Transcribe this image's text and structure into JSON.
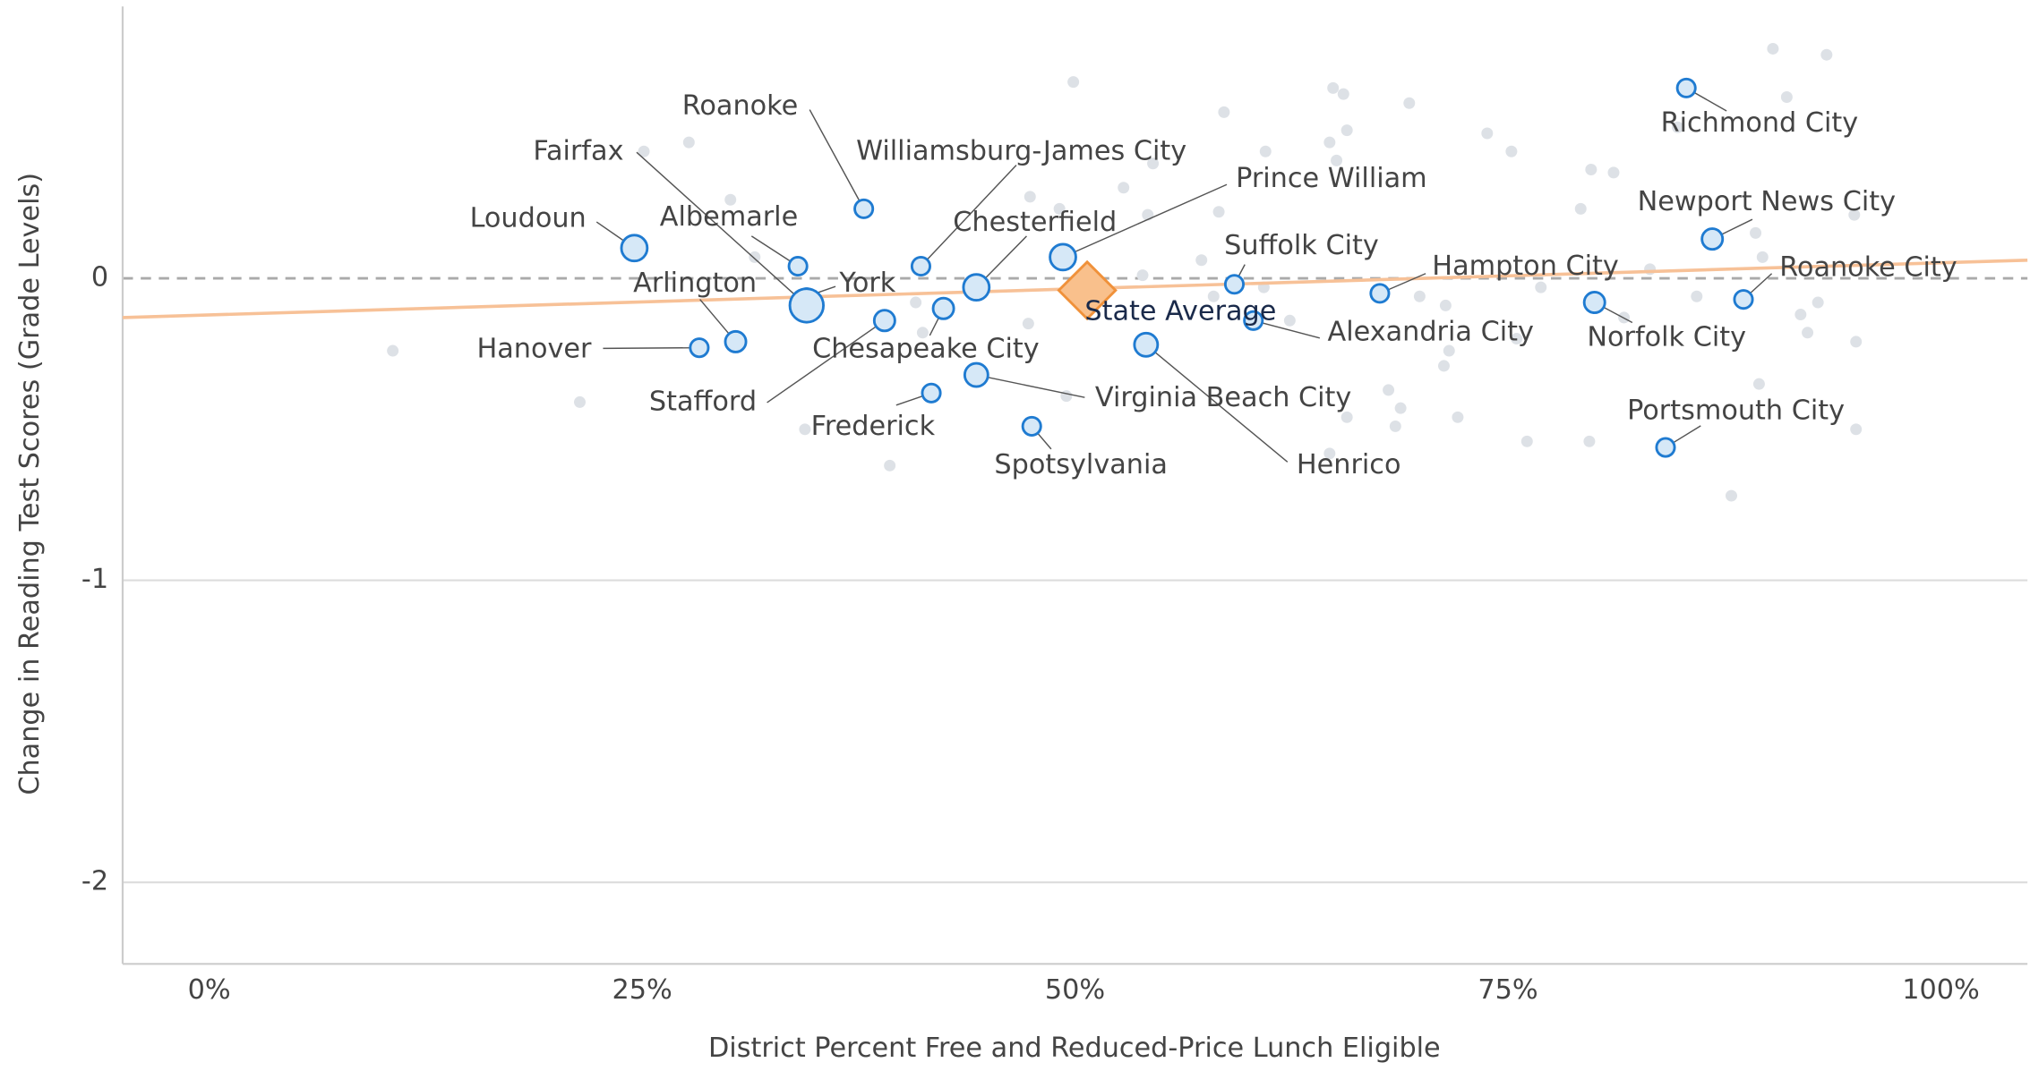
{
  "chart_data": {
    "type": "scatter",
    "xlabel": "District Percent Free and Reduced-Price Lunch Eligible",
    "ylabel": "Change in Reading Test Scores (Grade Levels)",
    "xlim": [
      -5,
      105
    ],
    "ylim": [
      -2.27,
      0.9
    ],
    "xticks": [
      {
        "value": 0,
        "label": "0%"
      },
      {
        "value": 25,
        "label": "25%"
      },
      {
        "value": 50,
        "label": "50%"
      },
      {
        "value": 75,
        "label": "75%"
      },
      {
        "value": 100,
        "label": "100%"
      }
    ],
    "yticks": [
      0,
      -1,
      -2
    ],
    "grid": true,
    "reference_y": 0,
    "background": {
      "color": "#dde1e6",
      "x": [
        10.6,
        21.4,
        25.1,
        27.7,
        30.1,
        31.5,
        34.4,
        39.3,
        40.8,
        41.2,
        47.4,
        47.3,
        49.1,
        49.5,
        49.9,
        52.8,
        53.9,
        54.5,
        54.2,
        58.6,
        58.3,
        57.3,
        58.0,
        61.0,
        60.9,
        62.4,
        64.9,
        65.5,
        64.7,
        65.7,
        65.1,
        69.3,
        69.9,
        71.4,
        71.3,
        71.6,
        68.1,
        68.8,
        68.5,
        65.7,
        64.7,
        72.1,
        73.8,
        75.2,
        75.5,
        76.1,
        76.9,
        79.2,
        79.8,
        81.1,
        81.7,
        83.2,
        85.9,
        79.7,
        87.9,
        89.5,
        90.3,
        91.1,
        89.3,
        89.7,
        91.9,
        92.3,
        92.9,
        93.4,
        95.1,
        95.1,
        95.0,
        84.8
      ],
      "y": [
        -0.24,
        -0.41,
        0.42,
        0.45,
        0.26,
        0.07,
        -0.5,
        -0.62,
        -0.08,
        -0.18,
        0.27,
        -0.15,
        0.23,
        -0.39,
        0.65,
        0.3,
        0.01,
        0.38,
        0.21,
        0.55,
        0.22,
        0.06,
        -0.06,
        0.42,
        -0.03,
        -0.14,
        0.63,
        0.61,
        0.45,
        0.49,
        0.39,
        0.58,
        -0.06,
        -0.09,
        -0.29,
        -0.24,
        -0.37,
        -0.43,
        -0.49,
        -0.46,
        -0.58,
        -0.46,
        0.48,
        0.42,
        -0.2,
        -0.54,
        -0.03,
        0.23,
        0.36,
        0.35,
        -0.13,
        0.03,
        -0.06,
        -0.54,
        -0.72,
        -0.35,
        0.76,
        0.6,
        0.15,
        0.07,
        -0.12,
        -0.18,
        -0.08,
        0.74,
        -0.21,
        -0.5,
        0.21,
        0.5
      ]
    },
    "districts": {
      "color": "#1f7bd1",
      "fill": "#d6e8f7",
      "labels": [
        "Loudoun",
        "Arlington",
        "Hanover",
        "Albemarle",
        "York",
        "Fairfax",
        "Roanoke",
        "Williamsburg-James City",
        "Chesterfield",
        "Chesapeake City",
        "Stafford",
        "Frederick",
        "Virginia Beach City",
        "Spotsylvania",
        "Prince William",
        "Suffolk City",
        "Alexandria City",
        "Henrico",
        "Hampton City",
        "Norfolk City",
        "Richmond City",
        "Newport News City",
        "Roanoke City",
        "Portsmouth City"
      ],
      "x": [
        24.55,
        30.4,
        28.3,
        34.0,
        34.5,
        34.5,
        37.8,
        41.1,
        44.3,
        42.4,
        39.0,
        41.7,
        44.3,
        47.5,
        49.3,
        59.2,
        60.3,
        54.1,
        67.6,
        80.0,
        85.3,
        86.8,
        88.6,
        84.1
      ],
      "y": [
        0.1,
        -0.21,
        -0.23,
        0.04,
        -0.06,
        -0.09,
        0.23,
        0.04,
        -0.03,
        -0.1,
        -0.14,
        -0.38,
        -0.32,
        -0.49,
        0.07,
        -0.02,
        -0.14,
        -0.22,
        -0.05,
        -0.08,
        0.63,
        0.13,
        -0.07,
        -0.56
      ],
      "sizes": [
        10,
        8,
        7,
        7,
        6,
        13,
        7,
        7,
        10,
        8,
        8,
        7,
        9,
        7,
        10,
        7,
        7,
        9,
        7,
        8,
        7,
        8,
        7,
        7
      ]
    },
    "state_average": {
      "label": "State Average",
      "x": 50.7,
      "y": -0.04,
      "color": "#f0913a",
      "fill": "#f9c08c"
    },
    "trend": {
      "x": [
        -5,
        105
      ],
      "y": [
        -0.13,
        0.06
      ],
      "color": "#f7c197"
    }
  }
}
